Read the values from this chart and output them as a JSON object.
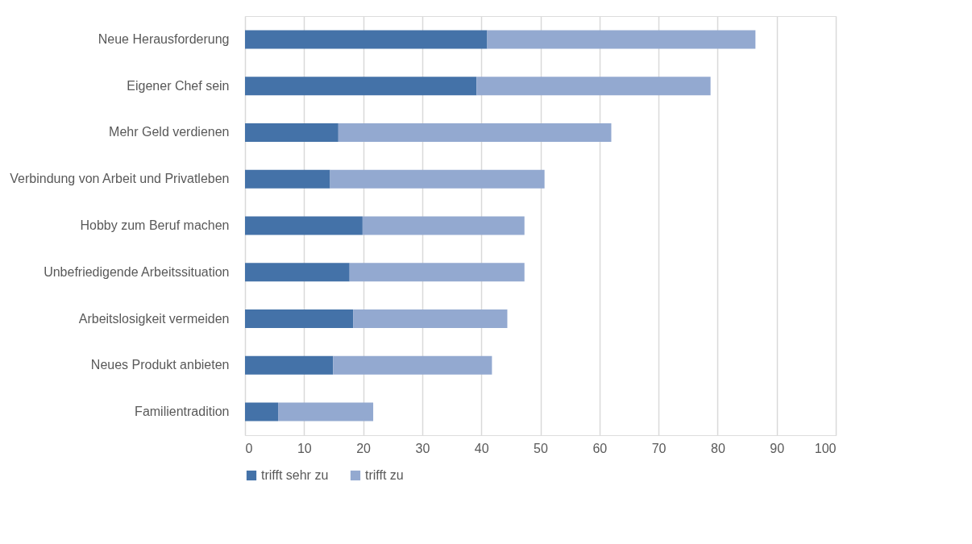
{
  "chart_data": {
    "type": "bar",
    "orientation": "horizontal",
    "stacked": true,
    "categories": [
      "Neue Herausforderung",
      "Eigener Chef sein",
      "Mehr Geld verdienen",
      "Verbindung von Arbeit und Privatleben",
      "Hobby zum Beruf machen",
      "Unbefriedigende Arbeitssituation",
      "Arbeitslosigkeit vermeiden",
      "Neues Produkt anbieten",
      "Familientradition"
    ],
    "series": [
      {
        "name": "trifft sehr zu",
        "color": "#4472a8",
        "values": [
          41.0,
          39.2,
          15.8,
          14.4,
          19.9,
          17.7,
          18.3,
          14.9,
          5.6
        ]
      },
      {
        "name": "trifft zu",
        "color": "#93a9d0",
        "values": [
          45.4,
          39.6,
          46.2,
          36.3,
          27.4,
          29.6,
          26.1,
          26.9,
          16.1
        ]
      }
    ],
    "xlim": [
      0,
      100
    ],
    "xticks": [
      0,
      10,
      20,
      30,
      40,
      50,
      60,
      70,
      80,
      90,
      100
    ],
    "grid": "x",
    "legend": "bottom"
  }
}
